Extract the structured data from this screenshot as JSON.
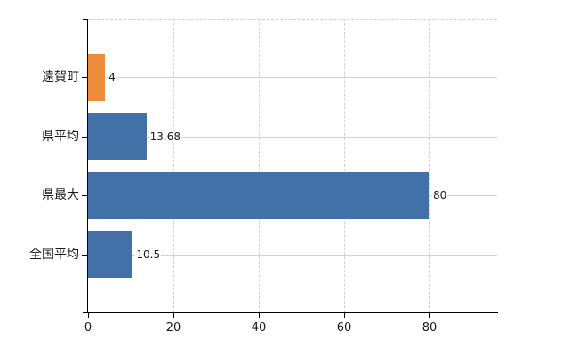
{
  "chart_data": {
    "type": "bar",
    "orientation": "horizontal",
    "title": "",
    "xlabel": "",
    "ylabel": "",
    "categories": [
      "遠賀町",
      "県平均",
      "県最大",
      "全国平均"
    ],
    "values": [
      4,
      13.68,
      80,
      10.5
    ],
    "value_labels": [
      "4",
      "13.68",
      "80",
      "10.5"
    ],
    "series": [
      {
        "name": "value",
        "values": [
          4,
          13.68,
          80,
          10.5
        ],
        "colors": [
          "#ed8d3b",
          "#4271a7",
          "#4271a7",
          "#4271a7"
        ]
      }
    ],
    "x_ticks": [
      0,
      20,
      40,
      60,
      80
    ],
    "x_tick_labels": [
      "0",
      "20",
      "40",
      "60",
      "80"
    ],
    "xlim": [
      0,
      95.8
    ],
    "grid": true,
    "legend": false,
    "gridline_style": {
      "vertical": "dashed",
      "horizontal": "solid",
      "top_border": "dashed"
    }
  },
  "colors": {
    "bar_orange": "#ed8d3b",
    "bar_blue": "#4271a7",
    "gridline": "#ccd4cc",
    "axis": "#000000",
    "text": "#1a1a1a",
    "background": "#ffffff"
  }
}
